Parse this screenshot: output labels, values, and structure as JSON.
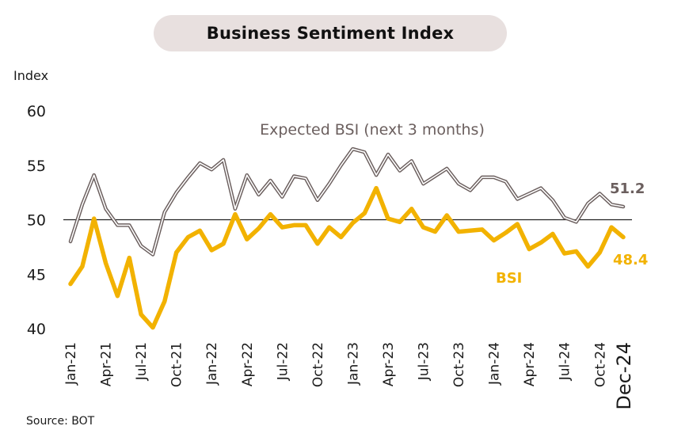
{
  "chart_data": {
    "type": "line",
    "title": "Business Sentiment Index",
    "ylabel": "Index",
    "source": "Source: BOT",
    "ylim": [
      40,
      60
    ],
    "yticks": [
      40,
      45,
      50,
      55,
      60
    ],
    "reference_line": 50,
    "x": [
      "Jan-21",
      "Feb-21",
      "Mar-21",
      "Apr-21",
      "May-21",
      "Jun-21",
      "Jul-21",
      "Aug-21",
      "Sep-21",
      "Oct-21",
      "Nov-21",
      "Dec-21",
      "Jan-22",
      "Feb-22",
      "Mar-22",
      "Apr-22",
      "May-22",
      "Jun-22",
      "Jul-22",
      "Aug-22",
      "Sep-22",
      "Oct-22",
      "Nov-22",
      "Dec-22",
      "Jan-23",
      "Feb-23",
      "Mar-23",
      "Apr-23",
      "May-23",
      "Jun-23",
      "Jul-23",
      "Aug-23",
      "Sep-23",
      "Oct-23",
      "Nov-23",
      "Dec-23",
      "Jan-24",
      "Feb-24",
      "Mar-24",
      "Apr-24",
      "May-24",
      "Jun-24",
      "Jul-24",
      "Aug-24",
      "Sep-24",
      "Oct-24",
      "Nov-24",
      "Dec-24"
    ],
    "xtick_labels": [
      "Jan-21",
      "Apr-21",
      "Jul-21",
      "Oct-21",
      "Jan-22",
      "Apr-22",
      "Jul-22",
      "Oct-22",
      "Jan-23",
      "Apr-23",
      "Jul-23",
      "Oct-23",
      "Jan-24",
      "Apr-24",
      "Jul-24",
      "Oct-24",
      "Dec-24"
    ],
    "series": [
      {
        "name": "Expected BSI (next 3 months)",
        "color": "#6b5f5e",
        "end_label": "51.2",
        "values": [
          48.0,
          51.4,
          54.1,
          51.0,
          49.5,
          49.5,
          47.6,
          46.8,
          50.7,
          52.5,
          53.9,
          55.2,
          54.6,
          55.5,
          51.0,
          54.1,
          52.3,
          53.6,
          52.1,
          54.0,
          53.8,
          51.8,
          53.3,
          55.0,
          56.5,
          56.2,
          54.1,
          56.0,
          54.5,
          55.4,
          53.3,
          54.0,
          54.7,
          53.3,
          52.7,
          53.9,
          53.9,
          53.5,
          51.9,
          52.4,
          52.9,
          51.8,
          50.2,
          49.8,
          51.5,
          52.4,
          51.4,
          51.2
        ]
      },
      {
        "name": "BSI",
        "color": "#f2b200",
        "end_label": "48.4",
        "values": [
          44.1,
          45.7,
          50.1,
          46.0,
          43.0,
          46.5,
          41.3,
          40.1,
          42.5,
          47.0,
          48.4,
          49.0,
          47.2,
          47.8,
          50.5,
          48.2,
          49.2,
          50.5,
          49.3,
          49.5,
          49.5,
          47.8,
          49.3,
          48.4,
          49.7,
          50.6,
          52.9,
          50.1,
          49.8,
          51.0,
          49.3,
          48.9,
          50.4,
          48.9,
          49.0,
          49.1,
          48.1,
          48.8,
          49.6,
          47.3,
          47.9,
          48.7,
          46.9,
          47.1,
          45.7,
          47.0,
          49.3,
          48.4
        ]
      }
    ]
  }
}
